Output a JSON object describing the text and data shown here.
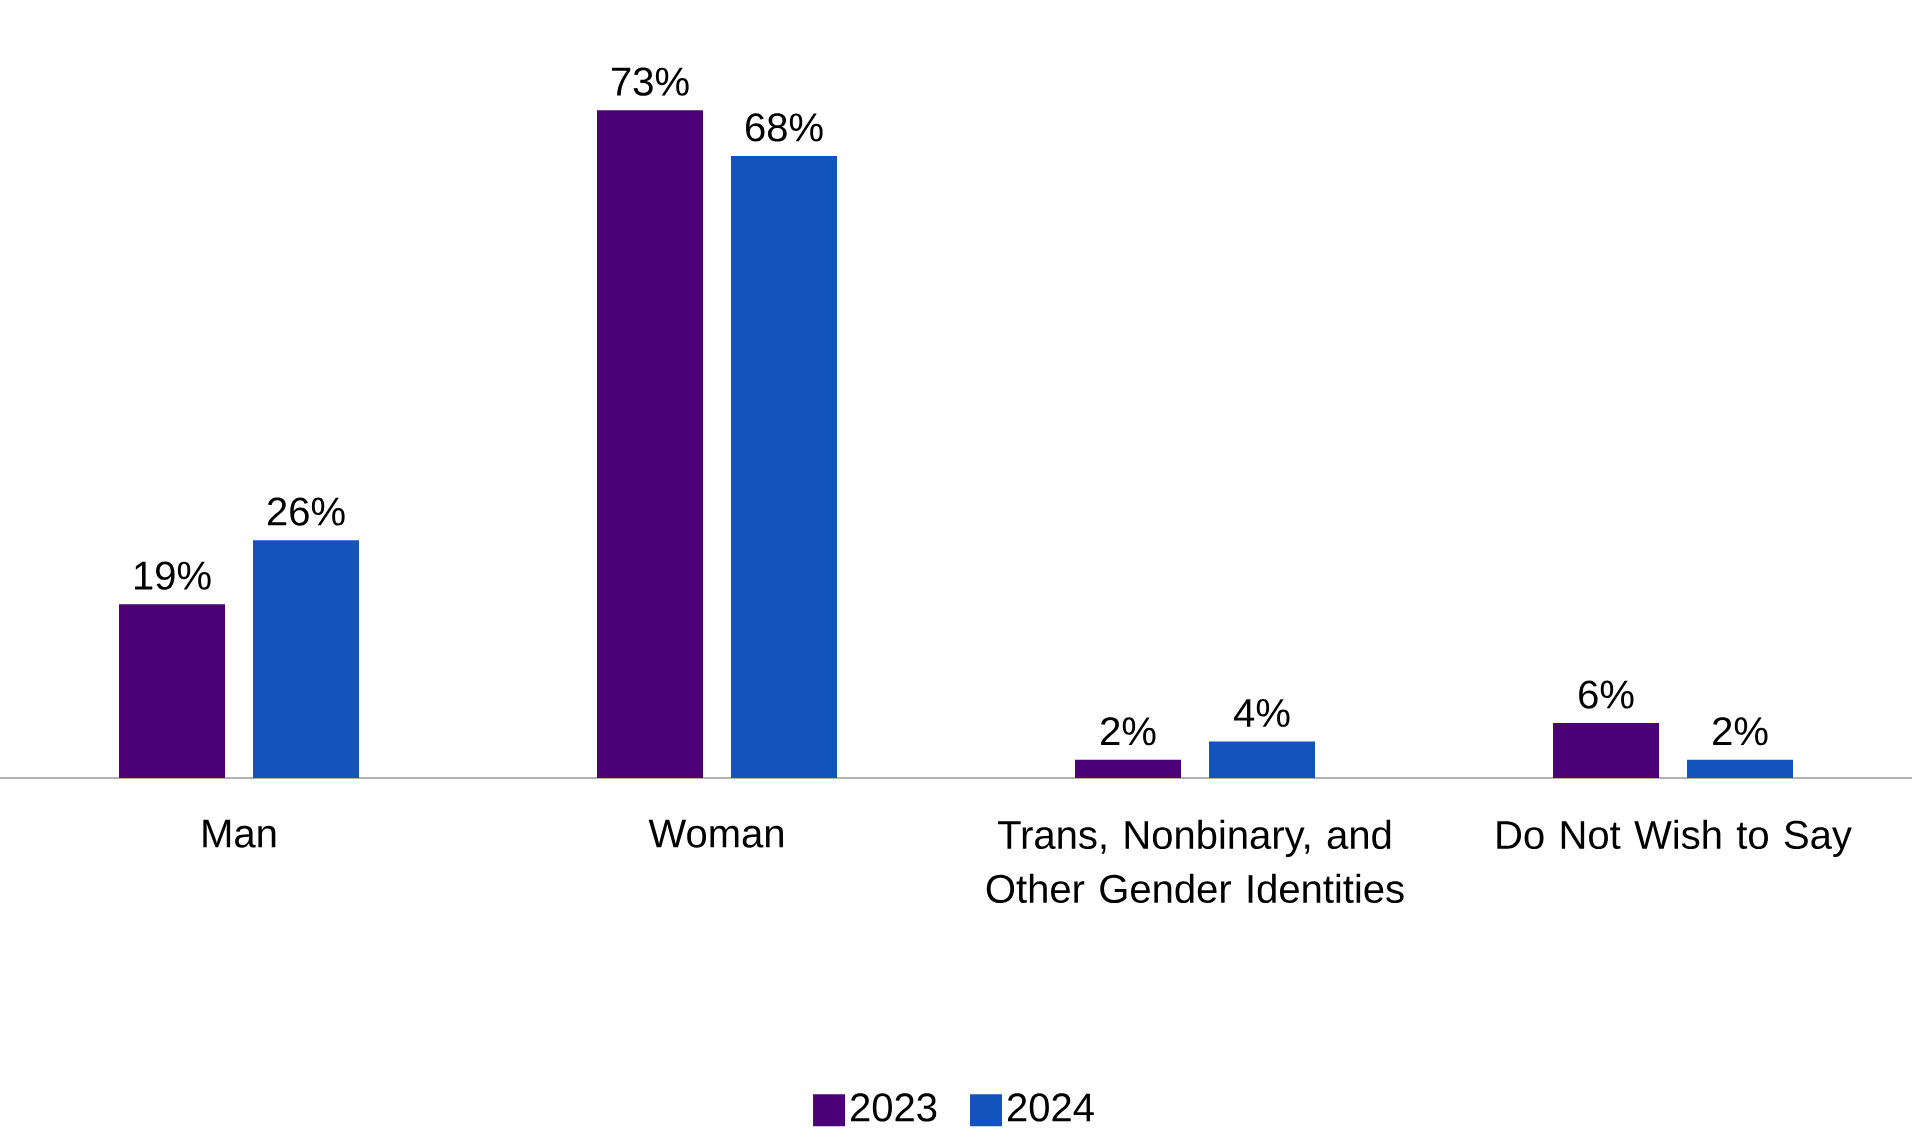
{
  "chart_data": {
    "type": "bar",
    "categories": [
      "Man",
      "Woman",
      "Trans, Nonbinary, and Other Gender Identities",
      "Do Not Wish to Say"
    ],
    "series": [
      {
        "name": "2023",
        "color": "#4b0078",
        "values": [
          19,
          73,
          2,
          6
        ],
        "value_labels": [
          "19%",
          "73%",
          "2%",
          "6%"
        ]
      },
      {
        "name": "2024",
        "color": "#1253bc",
        "values": [
          26,
          68,
          4,
          2
        ],
        "value_labels": [
          "26%",
          "68%",
          "4%",
          "2%"
        ]
      }
    ],
    "legend": "bottom"
  }
}
